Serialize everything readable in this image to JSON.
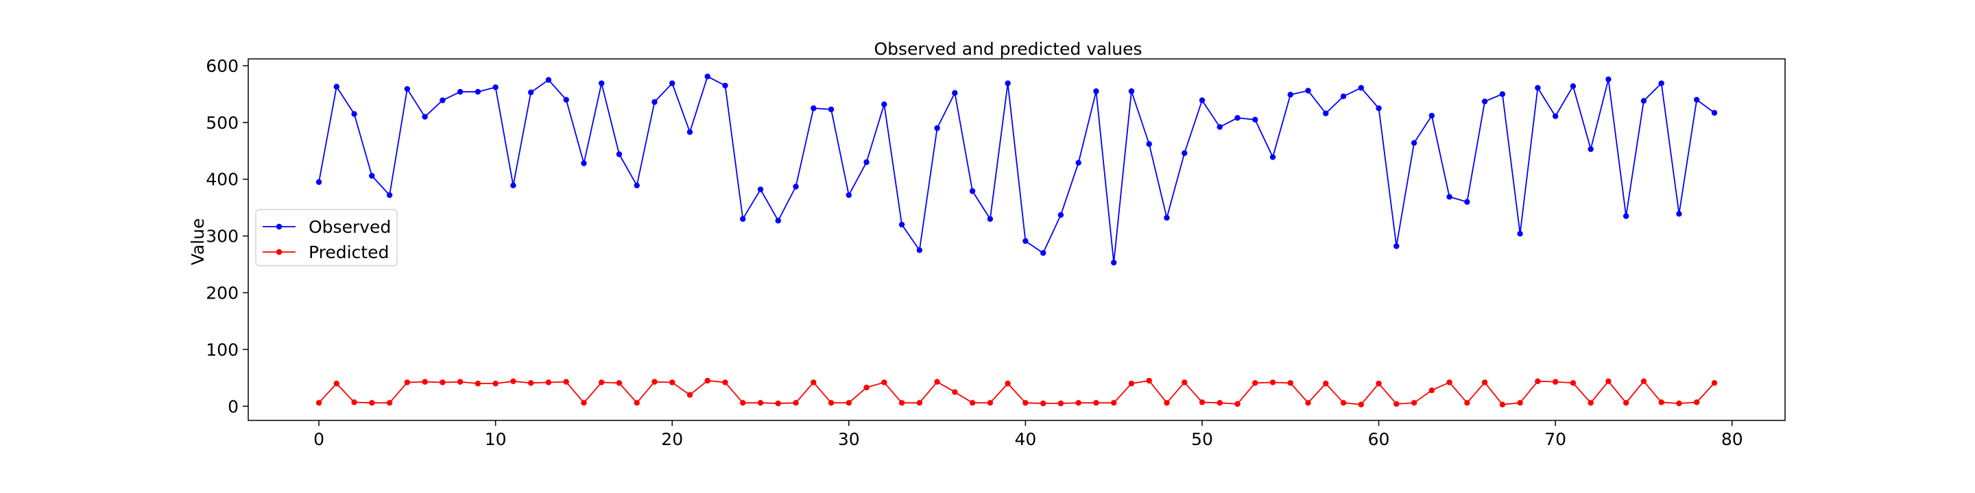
{
  "chart_data": {
    "type": "line",
    "title": "Observed and predicted values",
    "xlabel": "",
    "ylabel": "Value",
    "xlim": [
      -4,
      83
    ],
    "ylim": [
      -25,
      612
    ],
    "x_ticks": [
      0,
      10,
      20,
      30,
      40,
      50,
      60,
      70,
      80
    ],
    "y_ticks": [
      0,
      100,
      200,
      300,
      400,
      500,
      600
    ],
    "grid": false,
    "legend_position": "center-left",
    "x": [
      0,
      1,
      2,
      3,
      4,
      5,
      6,
      7,
      8,
      9,
      10,
      11,
      12,
      13,
      14,
      15,
      16,
      17,
      18,
      19,
      20,
      21,
      22,
      23,
      24,
      25,
      26,
      27,
      28,
      29,
      30,
      31,
      32,
      33,
      34,
      35,
      36,
      37,
      38,
      39,
      40,
      41,
      42,
      43,
      44,
      45,
      46,
      47,
      48,
      49,
      50,
      51,
      52,
      53,
      54,
      55,
      56,
      57,
      58,
      59,
      60,
      61,
      62,
      63,
      64,
      65,
      66,
      67,
      68,
      69,
      70,
      71,
      72,
      73,
      74,
      75,
      76,
      77,
      78,
      79
    ],
    "series": [
      {
        "name": "Observed",
        "color": "#0000ff",
        "values": [
          395,
          563,
          515,
          406,
          372,
          559,
          510,
          539,
          554,
          554,
          562,
          389,
          553,
          575,
          540,
          428,
          569,
          444,
          389,
          536,
          569,
          483,
          581,
          565,
          330,
          382,
          327,
          387,
          525,
          523,
          372,
          430,
          532,
          320,
          275,
          490,
          552,
          379,
          330,
          569,
          291,
          270,
          337,
          429,
          555,
          253,
          555,
          462,
          332,
          446,
          539,
          492,
          508,
          505,
          439,
          549,
          556,
          516,
          546,
          561,
          525,
          282,
          464,
          512,
          369,
          360,
          537,
          550,
          304,
          561,
          511,
          564,
          453,
          576,
          335,
          538,
          569,
          339,
          540,
          517
        ]
      },
      {
        "name": "Predicted",
        "color": "#ff0000",
        "values": [
          6,
          40,
          7,
          6,
          6,
          42,
          43,
          42,
          43,
          40,
          40,
          44,
          41,
          42,
          43,
          6,
          42,
          41,
          6,
          43,
          42,
          20,
          45,
          42,
          6,
          6,
          5,
          6,
          42,
          6,
          6,
          33,
          42,
          6,
          6,
          43,
          25,
          6,
          6,
          40,
          6,
          5,
          5,
          6,
          6,
          6,
          40,
          45,
          6,
          42,
          7,
          6,
          4,
          41,
          42,
          41,
          6,
          40,
          6,
          3,
          40,
          4,
          6,
          28,
          42,
          6,
          42,
          3,
          6,
          44,
          43,
          41,
          6,
          44,
          6,
          44,
          7,
          5,
          7,
          41
        ]
      }
    ]
  }
}
